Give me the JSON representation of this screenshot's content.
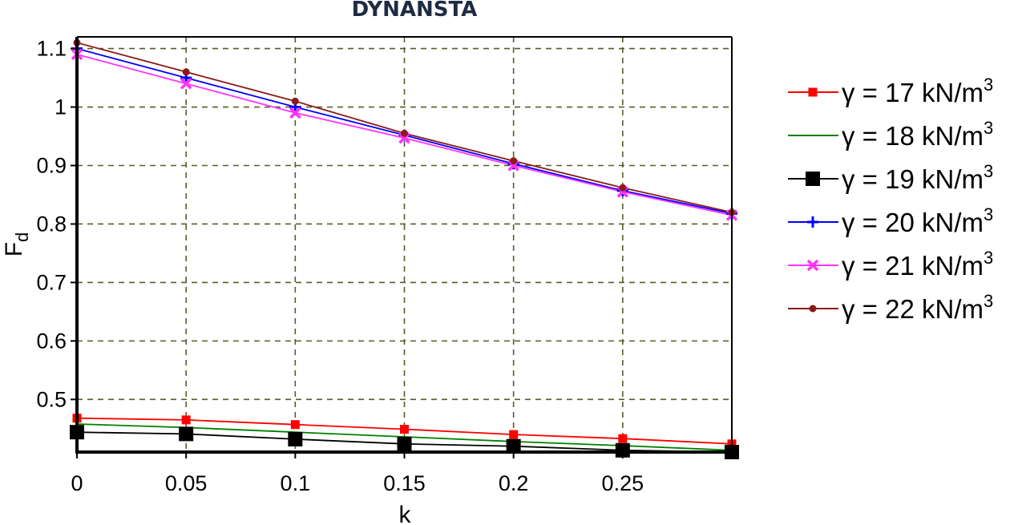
{
  "chart_data": {
    "type": "line",
    "title": "DYNANSTA",
    "xlabel": "k",
    "ylabel_main": "F",
    "ylabel_sub": "d",
    "xlim": [
      0,
      0.3
    ],
    "ylim": [
      0.41,
      1.12
    ],
    "xticks": [
      0,
      0.05,
      0.1,
      0.15,
      0.2,
      0.25
    ],
    "xtick_labels": [
      "0",
      "0.05",
      "0.1",
      "0.15",
      "0.2",
      "0.25"
    ],
    "yticks": [
      0.5,
      0.6,
      0.7,
      0.8,
      0.9,
      1.0,
      1.1
    ],
    "ytick_labels": [
      "0.5",
      "0.6",
      "0.7",
      "0.8",
      "0.9",
      "1",
      "1.1"
    ],
    "grid": true,
    "legend_position": "right",
    "x": [
      0,
      0.05,
      0.1,
      0.15,
      0.2,
      0.25,
      0.3
    ],
    "series": [
      {
        "name": "γ = 17 kN/m",
        "name_sup": "3",
        "color": "#ff0000",
        "marker": "square",
        "values": [
          0.468,
          0.465,
          0.457,
          0.449,
          0.44,
          0.433,
          0.424
        ]
      },
      {
        "name": "γ = 18 kN/m",
        "name_sup": "3",
        "color": "#008000",
        "marker": "none",
        "values": [
          0.458,
          0.452,
          0.444,
          0.436,
          0.428,
          0.421,
          0.413
        ]
      },
      {
        "name": "γ = 19 kN/m",
        "name_sup": "3",
        "color": "#000000",
        "marker": "bigsquare",
        "values": [
          0.444,
          0.441,
          0.432,
          0.424,
          0.42,
          0.413,
          0.41
        ]
      },
      {
        "name": "γ = 20 kN/m",
        "name_sup": "3",
        "color": "#0000ff",
        "marker": "plus",
        "values": [
          1.1,
          1.05,
          1.0,
          0.952,
          0.903,
          0.857,
          0.818
        ]
      },
      {
        "name": "γ = 21 kN/m",
        "name_sup": "3",
        "color": "#ff33ff",
        "marker": "x",
        "values": [
          1.09,
          1.04,
          0.99,
          0.947,
          0.9,
          0.855,
          0.815
        ]
      },
      {
        "name": "γ = 22 kN/m",
        "name_sup": "3",
        "color": "#8b1a1a",
        "marker": "circle",
        "values": [
          1.11,
          1.06,
          1.01,
          0.955,
          0.908,
          0.862,
          0.82
        ]
      }
    ]
  }
}
